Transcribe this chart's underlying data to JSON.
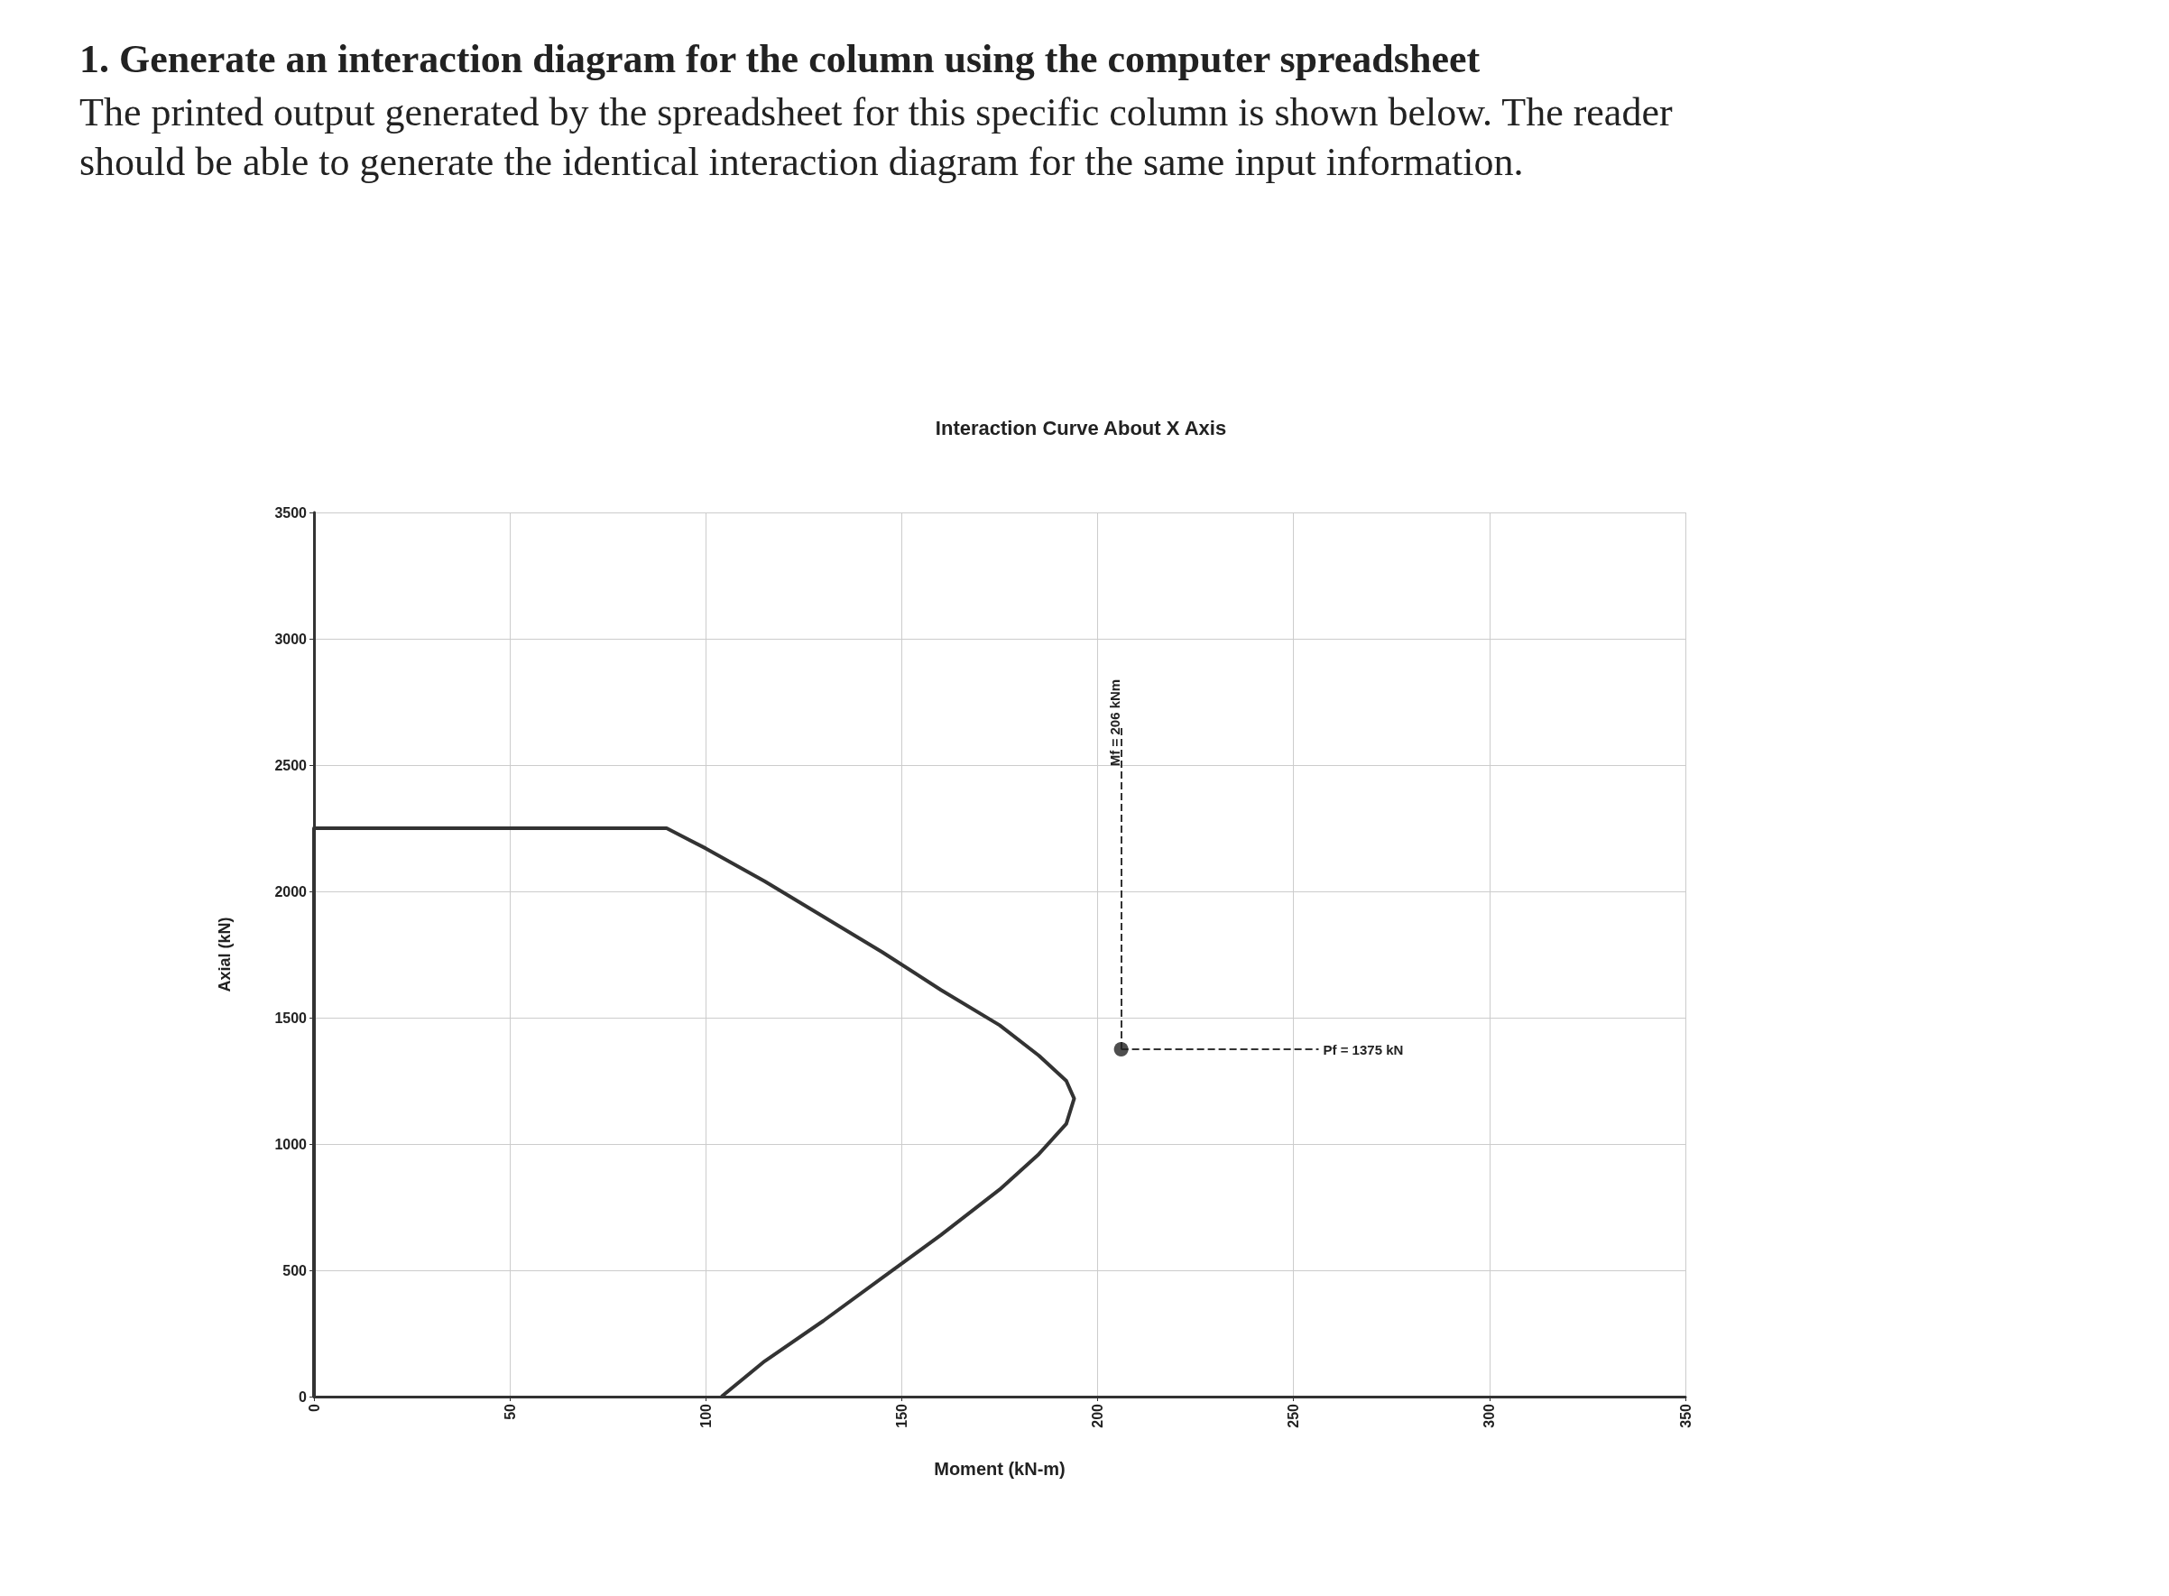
{
  "chart_data": {
    "type": "line",
    "title": "Interaction Curve About X Axis",
    "xlabel": "Moment (kN-m)",
    "ylabel": "Axial (kN)",
    "annotations": [
      "1.  Generate an interaction diagram for the column using the computer spreadsheet",
      "The printed output generated by the spreadsheet for this specific column is shown below. The reader should be able to generate the identical interaction diagram for the same input information."
    ],
    "series": [
      {
        "marker": "none",
        "color": "#333333",
        "x": [
          0,
          0,
          90,
          100,
          115,
          130,
          145,
          160,
          175,
          185,
          192,
          194,
          192,
          185,
          175,
          160,
          145,
          130,
          115,
          104
        ],
        "values": [
          0,
          2250,
          2250,
          2170,
          2040,
          1900,
          1760,
          1610,
          1470,
          1350,
          1250,
          1180,
          1080,
          960,
          820,
          640,
          470,
          300,
          140,
          0
        ]
      },
      {
        "type": "scatter",
        "marker": "circle",
        "color": "#222222",
        "x": [
          206
        ],
        "values": [
          1375
        ]
      }
    ],
    "ref_lines": [
      {
        "axis": "x",
        "value": 206,
        "label": "Mf = 206 kNm",
        "color": "#333333",
        "line_style": "dashed"
      },
      {
        "axis": "y",
        "value": 1375,
        "label": "Pf = 1375 kN",
        "color": "#333333",
        "line_style": "dashed"
      }
    ],
    "xlim": [
      0,
      350
    ],
    "xticks": [
      0,
      50,
      100,
      150,
      200,
      250,
      300,
      350
    ],
    "ylim": [
      0,
      3500
    ],
    "yticks": [
      0,
      500,
      1000,
      1500,
      2000,
      2500,
      3000,
      3500
    ],
    "grid": true,
    "line_style": "solid"
  }
}
